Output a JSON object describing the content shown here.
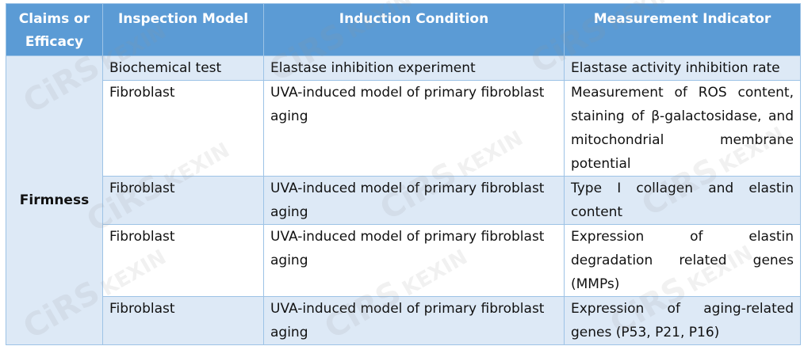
{
  "table": {
    "headers": [
      "Claims or Efficacy",
      "Inspection Model",
      "Induction Condition",
      "Measurement Indicator"
    ],
    "claim": "Firmness",
    "rows": [
      {
        "model": "Biochemical test",
        "condition": "Elastase inhibition experiment",
        "indicator": "Elastase activity inhibition rate"
      },
      {
        "model": "Fibroblast",
        "condition": "UVA-induced model of primary fibroblast aging",
        "indicator": "Measurement of ROS content, staining of β-galactosidase, and mitochondrial membrane potential"
      },
      {
        "model": "Fibroblast",
        "condition": "UVA-induced model of primary fibroblast aging",
        "indicator": "Type I collagen and elastin content"
      },
      {
        "model": "Fibroblast",
        "condition": "UVA-induced model of primary fibroblast aging",
        "indicator": "Expression of elastin degradation related genes (MMPs)"
      },
      {
        "model": "Fibroblast",
        "condition": "UVA-induced model of primary fibroblast aging",
        "indicator": "Expression of aging-related genes (P53, P21, P16)"
      }
    ]
  },
  "watermark": {
    "brand": "CiRS",
    "sub": "KEXIN"
  }
}
